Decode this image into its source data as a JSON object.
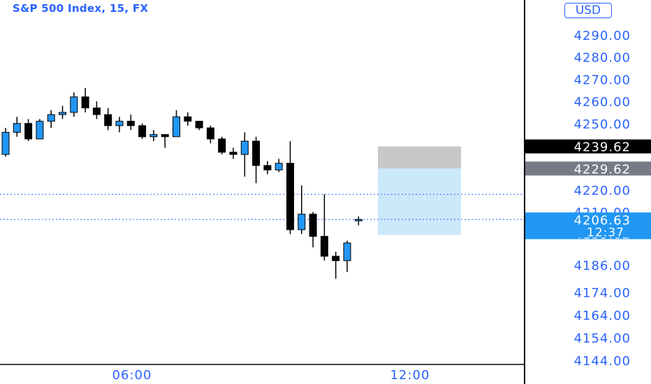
{
  "header": {
    "title": "S&P 500 Index, 15, FX",
    "currency": "USD"
  },
  "chart_data": {
    "type": "candlestick",
    "title": "S&P 500 Index, 15, FX",
    "currency": "USD",
    "y_ticks": [
      "4290.00",
      "4280.00",
      "4270.00",
      "4260.00",
      "4250.00",
      "4220.00",
      "4210.00",
      "4186.00",
      "4174.00",
      "4164.00",
      "4154.00",
      "4144.00"
    ],
    "x_ticks": [
      "06:00",
      "12:00"
    ],
    "candles": [
      {
        "o": 4236,
        "h": 4248,
        "l": 4235,
        "c": 4246
      },
      {
        "o": 4246,
        "h": 4253,
        "l": 4244,
        "c": 4250
      },
      {
        "o": 4250,
        "h": 4252,
        "l": 4242,
        "c": 4243
      },
      {
        "o": 4243,
        "h": 4252,
        "l": 4243,
        "c": 4251
      },
      {
        "o": 4251,
        "h": 4256,
        "l": 4248,
        "c": 4254
      },
      {
        "o": 4254,
        "h": 4258,
        "l": 4252,
        "c": 4255
      },
      {
        "o": 4255,
        "h": 4264,
        "l": 4253,
        "c": 4262
      },
      {
        "o": 4262,
        "h": 4266,
        "l": 4255,
        "c": 4257
      },
      {
        "o": 4257,
        "h": 4260,
        "l": 4252,
        "c": 4254
      },
      {
        "o": 4254,
        "h": 4257,
        "l": 4247,
        "c": 4249
      },
      {
        "o": 4249,
        "h": 4253,
        "l": 4246,
        "c": 4251
      },
      {
        "o": 4251,
        "h": 4254,
        "l": 4247,
        "c": 4249
      },
      {
        "o": 4249,
        "h": 4250,
        "l": 4243,
        "c": 4244
      },
      {
        "o": 4244,
        "h": 4247,
        "l": 4242,
        "c": 4245
      },
      {
        "o": 4245,
        "h": 4245,
        "l": 4239,
        "c": 4244
      },
      {
        "o": 4244,
        "h": 4256,
        "l": 4244,
        "c": 4253
      },
      {
        "o": 4253,
        "h": 4255,
        "l": 4249,
        "c": 4251
      },
      {
        "o": 4251,
        "h": 4251,
        "l": 4247,
        "c": 4248
      },
      {
        "o": 4248,
        "h": 4249,
        "l": 4241,
        "c": 4243
      },
      {
        "o": 4243,
        "h": 4244,
        "l": 4236,
        "c": 4237
      },
      {
        "o": 4237,
        "h": 4239,
        "l": 4234,
        "c": 4236
      },
      {
        "o": 4236,
        "h": 4246,
        "l": 4226,
        "c": 4242
      },
      {
        "o": 4242,
        "h": 4244,
        "l": 4223,
        "c": 4231
      },
      {
        "o": 4231,
        "h": 4233,
        "l": 4227,
        "c": 4229
      },
      {
        "o": 4229,
        "h": 4234,
        "l": 4228,
        "c": 4232
      },
      {
        "o": 4232,
        "h": 4242,
        "l": 4200,
        "c": 4202
      },
      {
        "o": 4202,
        "h": 4222,
        "l": 4200,
        "c": 4209
      },
      {
        "o": 4209,
        "h": 4210,
        "l": 4194,
        "c": 4199
      },
      {
        "o": 4199,
        "h": 4218,
        "l": 4188,
        "c": 4190
      },
      {
        "o": 4190,
        "h": 4192,
        "l": 4180,
        "c": 4188
      },
      {
        "o": 4188,
        "h": 4197,
        "l": 4183,
        "c": 4196
      },
      {
        "o": 4206,
        "h": 4208,
        "l": 4204,
        "c": 4206.63
      }
    ],
    "markers": [
      {
        "label": "4239.62",
        "value": 4239.62,
        "color": "#000000"
      },
      {
        "label": "4229.62",
        "value": 4229.62,
        "color": "#787b86"
      }
    ],
    "current": {
      "price": "4206.63",
      "timer": "12:37",
      "value": 4206.63,
      "color": "#2196f3"
    },
    "hidden_label": "4199.62",
    "dotted_lines": [
      4218,
      4206.63
    ],
    "position_box": {
      "stop": 4239.62,
      "entry": 4229.62,
      "target": 4199.62,
      "start_index": 32.7,
      "end_index": 40
    }
  },
  "colors": {
    "up": "#2196f3",
    "down": "#000000",
    "axis_text": "#2962ff",
    "stop_zone": "#c8c8c8",
    "target_zone": "#cce8fb"
  }
}
